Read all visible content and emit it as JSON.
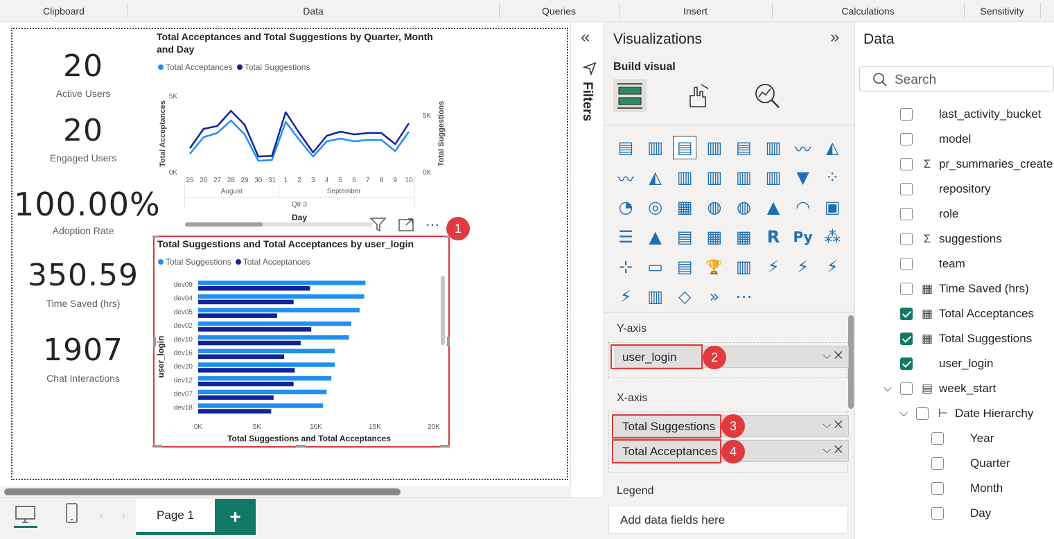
{
  "ribbon": {
    "groups": [
      "Clipboard",
      "Data",
      "Queries",
      "Insert",
      "Calculations",
      "Sensitivity"
    ]
  },
  "kpis": [
    {
      "value": "20",
      "label": "Active Users"
    },
    {
      "value": "20",
      "label": "Engaged Users"
    },
    {
      "value": "100.00%",
      "label": "Adoption Rate"
    },
    {
      "value": "350.59",
      "label": "Time Saved (hrs)"
    },
    {
      "value": "1907",
      "label": "Chat Interactions"
    }
  ],
  "line_chart": {
    "title": "Total Acceptances and Total Suggestions by Quarter, Month and Day",
    "legend": [
      "Total Acceptances",
      "Total Suggestions"
    ],
    "ylabel_left": "Total Acceptances",
    "ylabel_right": "Total Suggestions",
    "yticks_left": [
      "5K",
      "0K"
    ],
    "yticks_right": [
      "5K",
      "0K"
    ],
    "xlabel": "Day",
    "month_labels": [
      "August",
      "September"
    ],
    "quarter_label": "Qtr 3"
  },
  "bar_chart": {
    "title": "Total Suggestions and Total Acceptances by user_login",
    "legend": [
      "Total Suggestions",
      "Total Acceptances"
    ],
    "ylabel": "user_login",
    "xlabel": "Total Suggestions and Total Acceptances",
    "xticks": [
      "0K",
      "5K",
      "10K",
      "15K",
      "20K"
    ]
  },
  "chart_data": [
    {
      "type": "line",
      "title": "Total Acceptances and Total Suggestions by Quarter, Month and Day",
      "x": [
        "25",
        "26",
        "27",
        "28",
        "29",
        "30",
        "31",
        "1",
        "2",
        "3",
        "4",
        "5",
        "6",
        "7",
        "8",
        "9",
        "10"
      ],
      "series": [
        {
          "name": "Total Acceptances",
          "color": "#1f8ff2",
          "values": [
            1300,
            2500,
            2800,
            3700,
            2700,
            800,
            850,
            3600,
            2300,
            1100,
            2200,
            2400,
            2200,
            2300,
            2300,
            1500,
            2900
          ]
        },
        {
          "name": "Total Suggestions",
          "color": "#12239e",
          "values": [
            1700,
            3100,
            3300,
            4400,
            3400,
            1100,
            1150,
            4300,
            2800,
            1400,
            2600,
            2900,
            2700,
            2800,
            2800,
            2000,
            3500
          ]
        }
      ],
      "ylim": [
        0,
        5500
      ],
      "xlabel": "Day"
    },
    {
      "type": "bar",
      "title": "Total Suggestions and Total Acceptances by user_login",
      "categories": [
        "dev09",
        "dev04",
        "dev05",
        "dev02",
        "dev10",
        "dev16",
        "dev20",
        "dev12",
        "dev07",
        "dev18"
      ],
      "series": [
        {
          "name": "Total Suggestions",
          "color": "#1f8ff2",
          "values": [
            14200,
            14100,
            13700,
            13000,
            12800,
            11600,
            11600,
            11300,
            10900,
            10600
          ]
        },
        {
          "name": "Total Acceptances",
          "color": "#12239e",
          "values": [
            9500,
            8100,
            6700,
            9600,
            8700,
            7300,
            8200,
            8100,
            6400,
            6200
          ]
        }
      ],
      "xlim": [
        0,
        20000
      ],
      "xlabel": "Total Suggestions and Total Acceptances",
      "ylabel": "user_login"
    }
  ],
  "filters": {
    "label": "Filters"
  },
  "viz": {
    "title": "Visualizations",
    "build_visual": "Build visual",
    "yaxis_label": "Y-axis",
    "yaxis_field": "user_login",
    "xaxis_label": "X-axis",
    "xaxis_fields": [
      "Total Suggestions",
      "Total Acceptances"
    ],
    "legend_label": "Legend",
    "legend_placeholder": "Add data fields here",
    "badges": [
      "1",
      "2",
      "3",
      "4"
    ]
  },
  "data_pane": {
    "title": "Data",
    "search_placeholder": "Search",
    "fields": [
      {
        "label": "last_activity_bucket",
        "checked": false,
        "icon": ""
      },
      {
        "label": "model",
        "checked": false,
        "icon": ""
      },
      {
        "label": "pr_summaries_created",
        "checked": false,
        "icon": "Σ"
      },
      {
        "label": "repository",
        "checked": false,
        "icon": ""
      },
      {
        "label": "role",
        "checked": false,
        "icon": ""
      },
      {
        "label": "suggestions",
        "checked": false,
        "icon": "Σ"
      },
      {
        "label": "team",
        "checked": false,
        "icon": ""
      },
      {
        "label": "Time Saved (hrs)",
        "checked": false,
        "icon": "calc"
      },
      {
        "label": "Total Acceptances",
        "checked": true,
        "icon": "calc"
      },
      {
        "label": "Total Suggestions",
        "checked": true,
        "icon": "calc"
      },
      {
        "label": "user_login",
        "checked": true,
        "icon": ""
      },
      {
        "label": "week_start",
        "checked": false,
        "icon": "cal"
      },
      {
        "label": "Date Hierarchy",
        "checked": false,
        "icon": "hier"
      },
      {
        "label": "Year",
        "checked": false,
        "icon": ""
      },
      {
        "label": "Quarter",
        "checked": false,
        "icon": ""
      },
      {
        "label": "Month",
        "checked": false,
        "icon": ""
      },
      {
        "label": "Day",
        "checked": false,
        "icon": ""
      }
    ]
  },
  "pages": {
    "tab": "Page 1",
    "add": "+"
  }
}
